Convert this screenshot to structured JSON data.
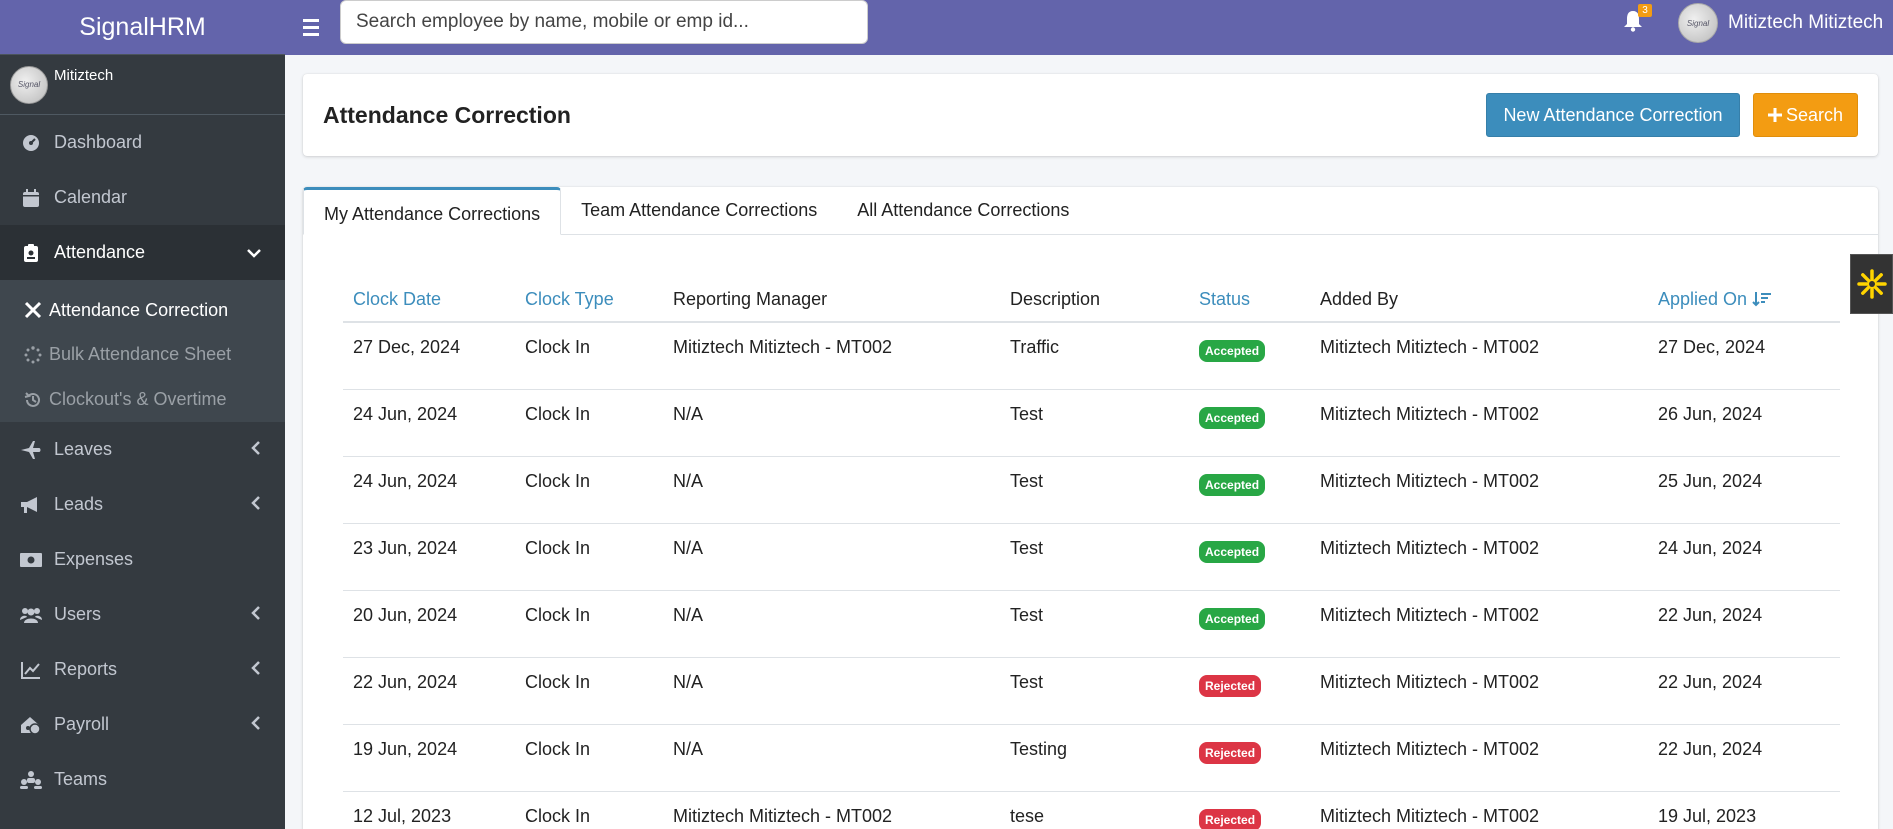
{
  "brand": "SignalHRM",
  "sidebar": {
    "user_name": "Mitiztech",
    "items": [
      {
        "label": "Dashboard",
        "icon": "dashboard-icon"
      },
      {
        "label": "Calendar",
        "icon": "calendar-icon"
      },
      {
        "label": "Attendance",
        "icon": "attendance-icon",
        "expanded": true
      },
      {
        "label": "Leaves",
        "icon": "plane-icon"
      },
      {
        "label": "Leads",
        "icon": "megaphone-icon"
      },
      {
        "label": "Expenses",
        "icon": "money-icon"
      },
      {
        "label": "Users",
        "icon": "users-icon"
      },
      {
        "label": "Reports",
        "icon": "chart-icon"
      },
      {
        "label": "Payroll",
        "icon": "payroll-icon"
      },
      {
        "label": "Teams",
        "icon": "teams-icon"
      }
    ],
    "submenu": [
      {
        "label": "Attendance Correction",
        "icon": "tools-icon",
        "active": true
      },
      {
        "label": "Bulk Attendance Sheet",
        "icon": "spinner-icon"
      },
      {
        "label": "Clockout's & Overtime",
        "icon": "history-icon"
      }
    ]
  },
  "topbar": {
    "search_placeholder": "Search employee by name, mobile or emp id...",
    "notification_count": "3",
    "user_name": "Mitiztech Mitiztech"
  },
  "header": {
    "title": "Attendance Correction",
    "new_button": "New Attendance Correction",
    "search_button": "Search"
  },
  "tabs": [
    {
      "label": "My Attendance Corrections",
      "active": true
    },
    {
      "label": "Team Attendance Corrections"
    },
    {
      "label": "All Attendance Corrections"
    }
  ],
  "table": {
    "columns": [
      "Clock Date",
      "Clock Type",
      "Reporting Manager",
      "Description",
      "Status",
      "Added By",
      "Applied On"
    ],
    "rows": [
      [
        "27 Dec, 2024",
        "Clock In",
        "Mitiztech Mitiztech - MT002",
        "Traffic",
        "Accepted",
        "Mitiztech Mitiztech - MT002",
        "27 Dec, 2024"
      ],
      [
        "24 Jun, 2024",
        "Clock In",
        "N/A",
        "Test",
        "Accepted",
        "Mitiztech Mitiztech - MT002",
        "26 Jun, 2024"
      ],
      [
        "24 Jun, 2024",
        "Clock In",
        "N/A",
        "Test",
        "Accepted",
        "Mitiztech Mitiztech - MT002",
        "25 Jun, 2024"
      ],
      [
        "23 Jun, 2024",
        "Clock In",
        "N/A",
        "Test",
        "Accepted",
        "Mitiztech Mitiztech - MT002",
        "24 Jun, 2024"
      ],
      [
        "20 Jun, 2024",
        "Clock In",
        "N/A",
        "Test",
        "Accepted",
        "Mitiztech Mitiztech - MT002",
        "22 Jun, 2024"
      ],
      [
        "22 Jun, 2024",
        "Clock In",
        "N/A",
        "Test",
        "Rejected",
        "Mitiztech Mitiztech - MT002",
        "22 Jun, 2024"
      ],
      [
        "19 Jun, 2024",
        "Clock In",
        "N/A",
        "Testing",
        "Rejected",
        "Mitiztech Mitiztech - MT002",
        "22 Jun, 2024"
      ],
      [
        "12 Jul, 2023",
        "Clock In",
        "Mitiztech Mitiztech - MT002",
        "tese",
        "Rejected",
        "Mitiztech Mitiztech - MT002",
        "19 Jul, 2023"
      ]
    ]
  },
  "colors": {
    "primary": "#6364ab",
    "sidebar": "#343a40",
    "accepted": "#28a745",
    "rejected": "#dc3545",
    "info": "#3c8dbc",
    "warning": "#f39c12"
  }
}
